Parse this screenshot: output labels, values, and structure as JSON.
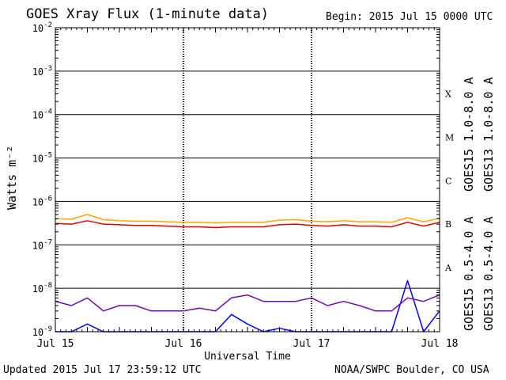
{
  "header": {
    "title": "GOES Xray Flux (1-minute data)",
    "begin": "Begin:  2015 Jul 15 0000 UTC"
  },
  "footer": {
    "updated": "Updated 2015 Jul 17 23:59:12 UTC",
    "credit": "NOAA/SWPC Boulder, CO USA"
  },
  "colors": {
    "goes15_long": "#e00000",
    "goes13_long": "#ffa500",
    "goes15_short": "#0000ff",
    "goes13_short": "#6a0dad",
    "frame": "#000000"
  },
  "chart_data": {
    "type": "line",
    "title": "GOES Xray Flux (1-minute data)",
    "xlabel": "Universal Time",
    "ylabel": "Watts m⁻²",
    "yscale": "log",
    "ylim": [
      1e-09,
      0.01
    ],
    "xlim": [
      "2015-07-15",
      "2015-07-18"
    ],
    "grid": true,
    "x_ticks": [
      "Jul 15",
      "Jul 16",
      "Jul 17",
      "Jul 18"
    ],
    "y_ticks": [
      {
        "value": 0.01,
        "mantissa": "10",
        "exp": "-2"
      },
      {
        "value": 0.001,
        "mantissa": "10",
        "exp": "-3"
      },
      {
        "value": 0.0001,
        "mantissa": "10",
        "exp": "-4"
      },
      {
        "value": 1e-05,
        "mantissa": "10",
        "exp": "-5"
      },
      {
        "value": 1e-06,
        "mantissa": "10",
        "exp": "-6"
      },
      {
        "value": 1e-07,
        "mantissa": "10",
        "exp": "-7"
      },
      {
        "value": 1e-08,
        "mantissa": "10",
        "exp": "-8"
      },
      {
        "value": 1e-09,
        "mantissa": "10",
        "exp": "-9"
      }
    ],
    "flare_classes": [
      {
        "label": "X",
        "value": 0.0003
      },
      {
        "label": "M",
        "value": 3e-05
      },
      {
        "label": "C",
        "value": 3e-06
      },
      {
        "label": "B",
        "value": 3e-07
      },
      {
        "label": "A",
        "value": 3e-08
      }
    ],
    "legend_placement": "right",
    "series": [
      {
        "name": "GOES15 1.0-8.0 A",
        "color": "#e00000",
        "x": [
          "2015-07-15 00:00",
          "2015-07-15 03:00",
          "2015-07-15 06:00",
          "2015-07-15 09:00",
          "2015-07-15 12:00",
          "2015-07-15 15:00",
          "2015-07-15 18:00",
          "2015-07-15 21:00",
          "2015-07-16 00:00",
          "2015-07-16 03:00",
          "2015-07-16 06:00",
          "2015-07-16 09:00",
          "2015-07-16 12:00",
          "2015-07-16 15:00",
          "2015-07-16 18:00",
          "2015-07-16 21:00",
          "2015-07-17 00:00",
          "2015-07-17 03:00",
          "2015-07-17 06:00",
          "2015-07-17 09:00",
          "2015-07-17 12:00",
          "2015-07-17 15:00",
          "2015-07-17 18:00",
          "2015-07-17 21:00",
          "2015-07-17 23:59"
        ],
        "values": [
          3.1e-07,
          3e-07,
          3.6e-07,
          3e-07,
          2.9e-07,
          2.8e-07,
          2.8e-07,
          2.7e-07,
          2.6e-07,
          2.6e-07,
          2.5e-07,
          2.6e-07,
          2.6e-07,
          2.6e-07,
          2.9e-07,
          3e-07,
          2.8e-07,
          2.7e-07,
          2.9e-07,
          2.7e-07,
          2.7e-07,
          2.6e-07,
          3.3e-07,
          2.7e-07,
          3.3e-07
        ]
      },
      {
        "name": "GOES13 1.0-8.0 A",
        "color": "#ffa500",
        "x": [
          "2015-07-15 00:00",
          "2015-07-15 03:00",
          "2015-07-15 06:00",
          "2015-07-15 09:00",
          "2015-07-15 12:00",
          "2015-07-15 15:00",
          "2015-07-15 18:00",
          "2015-07-15 21:00",
          "2015-07-16 00:00",
          "2015-07-16 03:00",
          "2015-07-16 06:00",
          "2015-07-16 09:00",
          "2015-07-16 12:00",
          "2015-07-16 15:00",
          "2015-07-16 18:00",
          "2015-07-16 21:00",
          "2015-07-17 00:00",
          "2015-07-17 03:00",
          "2015-07-17 06:00",
          "2015-07-17 09:00",
          "2015-07-17 12:00",
          "2015-07-17 15:00",
          "2015-07-17 18:00",
          "2015-07-17 21:00",
          "2015-07-17 23:59"
        ],
        "values": [
          4e-07,
          3.9e-07,
          5e-07,
          3.8e-07,
          3.6e-07,
          3.5e-07,
          3.5e-07,
          3.4e-07,
          3.3e-07,
          3.3e-07,
          3.2e-07,
          3.3e-07,
          3.3e-07,
          3.3e-07,
          3.7e-07,
          3.8e-07,
          3.5e-07,
          3.4e-07,
          3.6e-07,
          3.4e-07,
          3.4e-07,
          3.3e-07,
          4.2e-07,
          3.4e-07,
          4.1e-07
        ]
      },
      {
        "name": "GOES15 0.5-4.0 A",
        "color": "#0000ff",
        "x": [
          "2015-07-15 00:00",
          "2015-07-15 03:00",
          "2015-07-15 06:00",
          "2015-07-15 09:00",
          "2015-07-15 12:00",
          "2015-07-15 15:00",
          "2015-07-15 18:00",
          "2015-07-15 21:00",
          "2015-07-16 00:00",
          "2015-07-16 03:00",
          "2015-07-16 06:00",
          "2015-07-16 09:00",
          "2015-07-16 12:00",
          "2015-07-16 15:00",
          "2015-07-16 18:00",
          "2015-07-16 21:00",
          "2015-07-17 00:00",
          "2015-07-17 03:00",
          "2015-07-17 06:00",
          "2015-07-17 09:00",
          "2015-07-17 12:00",
          "2015-07-17 15:00",
          "2015-07-17 18:00",
          "2015-07-17 21:00",
          "2015-07-17 23:59"
        ],
        "values": [
          1e-09,
          1e-09,
          1.5e-09,
          1e-09,
          1e-09,
          1e-09,
          1e-09,
          1e-09,
          1e-09,
          1e-09,
          1e-09,
          2.5e-09,
          1.5e-09,
          1e-09,
          1.2e-09,
          1e-09,
          1e-09,
          1e-09,
          1e-09,
          1e-09,
          1e-09,
          1e-09,
          1.5e-08,
          1e-09,
          3e-09
        ]
      },
      {
        "name": "GOES13 0.5-4.0 A",
        "color": "#6a0dad",
        "x": [
          "2015-07-15 00:00",
          "2015-07-15 03:00",
          "2015-07-15 06:00",
          "2015-07-15 09:00",
          "2015-07-15 12:00",
          "2015-07-15 15:00",
          "2015-07-15 18:00",
          "2015-07-15 21:00",
          "2015-07-16 00:00",
          "2015-07-16 03:00",
          "2015-07-16 06:00",
          "2015-07-16 09:00",
          "2015-07-16 12:00",
          "2015-07-16 15:00",
          "2015-07-16 18:00",
          "2015-07-16 21:00",
          "2015-07-17 00:00",
          "2015-07-17 03:00",
          "2015-07-17 06:00",
          "2015-07-17 09:00",
          "2015-07-17 12:00",
          "2015-07-17 15:00",
          "2015-07-17 18:00",
          "2015-07-17 21:00",
          "2015-07-17 23:59"
        ],
        "values": [
          5e-09,
          4e-09,
          6e-09,
          3e-09,
          4e-09,
          4e-09,
          3e-09,
          3e-09,
          3e-09,
          3.5e-09,
          3e-09,
          6e-09,
          7e-09,
          5e-09,
          5e-09,
          5e-09,
          6e-09,
          4e-09,
          5e-09,
          4e-09,
          3e-09,
          3e-09,
          6e-09,
          5e-09,
          7e-09
        ]
      }
    ]
  }
}
